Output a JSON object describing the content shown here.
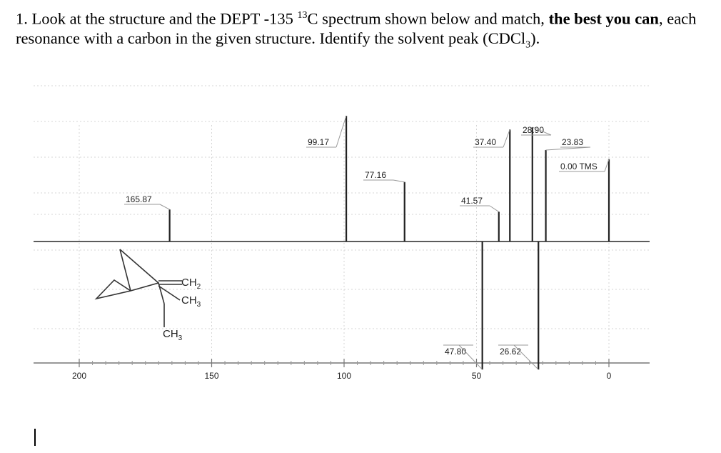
{
  "question": {
    "part1": "1. Look at the structure and the DEPT -135 ",
    "sup": "13",
    "part2": "C spectrum shown below and match, ",
    "bold1": "the best you can",
    "part3": ", each resonance with a carbon in the given structure. Identify the solvent peak (CDCl",
    "sub": "3",
    "part4": ")."
  },
  "structure_labels": {
    "ch2": "CH",
    "ch2_sub": "2",
    "ch3_right": "CH",
    "ch3_right_sub": "3",
    "ch3_bottom": "CH",
    "ch3_bottom_sub": "3"
  },
  "chart_data": {
    "type": "bar",
    "title": "",
    "xlabel": "",
    "ylabel": "",
    "x_axis_reversed": true,
    "xlim": [
      200,
      0
    ],
    "x_ticks": [
      200,
      150,
      100,
      50,
      0
    ],
    "x_minor_step": 5,
    "peaks": [
      {
        "label": "165.87",
        "ppm": 165.87,
        "intensity": 0.28,
        "label_pos": "above"
      },
      {
        "label": "99.17",
        "ppm": 99.17,
        "intensity": 1.1,
        "label_pos": "above"
      },
      {
        "label": "77.16",
        "ppm": 77.16,
        "intensity": 0.52,
        "label_pos": "above"
      },
      {
        "label": "41.57",
        "ppm": 41.57,
        "intensity": 0.26,
        "label_pos": "above"
      },
      {
        "label": "37.40",
        "ppm": 37.4,
        "intensity": 0.98,
        "label_pos": "above"
      },
      {
        "label": "28.90",
        "ppm": 28.9,
        "intensity": 1.0,
        "label_pos": "above"
      },
      {
        "label": "23.83",
        "ppm": 23.83,
        "intensity": 0.8,
        "label_pos": "above"
      },
      {
        "label": "0.00 TMS",
        "ppm": 0.0,
        "intensity": 0.72,
        "label_pos": "above"
      },
      {
        "label": "47.80",
        "ppm": 47.8,
        "intensity": -1.12,
        "label_pos": "below"
      },
      {
        "label": "26.62",
        "ppm": 26.62,
        "intensity": -1.12,
        "label_pos": "below"
      }
    ],
    "grid": true
  }
}
